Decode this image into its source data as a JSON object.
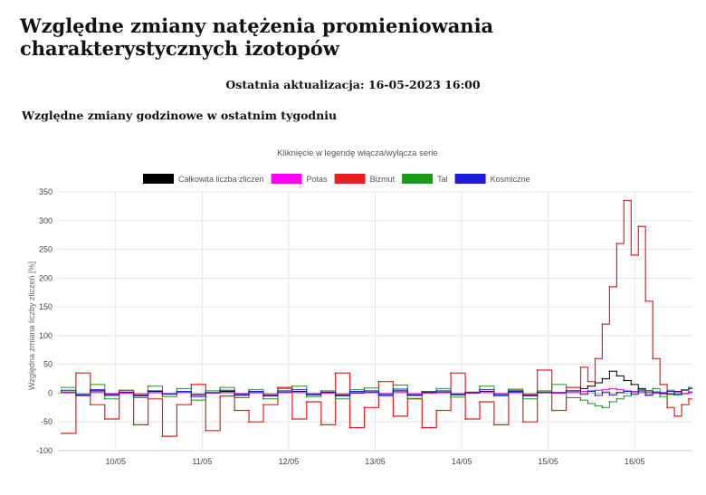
{
  "page": {
    "title": "Względne zmiany natężenia promieniowania charakterystycznych izotopów",
    "updated_label": "Ostatnia aktualizacja: 16-05-2023 16:00",
    "section_title": "Względne zmiany godzinowe w ostatnim tygodniu"
  },
  "chart_data": {
    "type": "line",
    "hint": "Kliknięcie w legendę włącza/wyłącza serie",
    "ylabel": "Względna zmiana liczby zliczeń [%]",
    "ylim": [
      -100,
      350
    ],
    "yticks": [
      -100,
      -50,
      0,
      50,
      100,
      150,
      200,
      250,
      300,
      350
    ],
    "xlim": [
      "09/05 08:00",
      "16/05 16:00"
    ],
    "xticks": [
      "10/05",
      "11/05",
      "12/05",
      "13/05",
      "14/05",
      "15/05",
      "16/05"
    ],
    "grid": true,
    "legend_position": "top",
    "x": [
      "09/05 09:00",
      "09/05 13:00",
      "09/05 17:00",
      "09/05 21:00",
      "10/05 01:00",
      "10/05 05:00",
      "10/05 09:00",
      "10/05 13:00",
      "10/05 17:00",
      "10/05 21:00",
      "11/05 01:00",
      "11/05 05:00",
      "11/05 09:00",
      "11/05 13:00",
      "11/05 17:00",
      "11/05 21:00",
      "12/05 01:00",
      "12/05 05:00",
      "12/05 09:00",
      "12/05 13:00",
      "12/05 17:00",
      "12/05 21:00",
      "13/05 01:00",
      "13/05 05:00",
      "13/05 09:00",
      "13/05 13:00",
      "13/05 17:00",
      "13/05 21:00",
      "14/05 01:00",
      "14/05 05:00",
      "14/05 09:00",
      "14/05 13:00",
      "14/05 17:00",
      "14/05 21:00",
      "15/05 01:00",
      "15/05 05:00",
      "15/05 09:00",
      "15/05 11:00",
      "15/05 13:00",
      "15/05 15:00",
      "15/05 17:00",
      "15/05 19:00",
      "15/05 21:00",
      "15/05 23:00",
      "16/05 01:00",
      "16/05 03:00",
      "16/05 05:00",
      "16/05 07:00",
      "16/05 09:00",
      "16/05 11:00",
      "16/05 13:00",
      "16/05 15:00"
    ],
    "series": [
      {
        "name": "Całkowita liczba zliczeń",
        "color": "#000000",
        "values": [
          2,
          -3,
          4,
          -2,
          1,
          -4,
          3,
          -1,
          2,
          -3,
          0,
          3,
          -2,
          1,
          -4,
          2,
          3,
          -2,
          1,
          -3,
          0,
          2,
          -1,
          4,
          -3,
          1,
          2,
          -2,
          0,
          3,
          -1,
          2,
          -3,
          1,
          0,
          4,
          8,
          12,
          18,
          25,
          38,
          30,
          22,
          15,
          8,
          4,
          2,
          0,
          -2,
          3,
          -1,
          2
        ]
      },
      {
        "name": "Potas",
        "color": "#ff00ff",
        "values": [
          1,
          -2,
          2,
          -1,
          0,
          -2,
          1,
          -1,
          2,
          -2,
          0,
          1,
          -1,
          1,
          -2,
          1,
          2,
          -1,
          0,
          -2,
          1,
          1,
          -1,
          2,
          -1,
          0,
          1,
          -1,
          0,
          2,
          -1,
          1,
          -2,
          1,
          0,
          2,
          3,
          4,
          5,
          6,
          8,
          6,
          4,
          3,
          2,
          1,
          0,
          1,
          -1,
          2,
          -1,
          1
        ]
      },
      {
        "name": "Bizmut",
        "color": "#e62020",
        "values": [
          -70,
          35,
          -20,
          -45,
          5,
          -55,
          -10,
          -75,
          -20,
          15,
          -65,
          -5,
          -30,
          -50,
          -20,
          10,
          -45,
          -15,
          -55,
          35,
          -60,
          -25,
          20,
          -40,
          -10,
          -60,
          -30,
          35,
          -45,
          -15,
          -55,
          5,
          -50,
          40,
          -30,
          10,
          45,
          20,
          60,
          120,
          185,
          260,
          335,
          240,
          290,
          160,
          60,
          15,
          -25,
          -40,
          -20,
          -10
        ]
      },
      {
        "name": "Tal",
        "color": "#1a9a1a",
        "values": [
          10,
          -5,
          15,
          -10,
          5,
          -8,
          12,
          -6,
          8,
          -12,
          4,
          10,
          -8,
          6,
          -10,
          8,
          12,
          -6,
          4,
          -10,
          6,
          9,
          -5,
          14,
          -9,
          3,
          8,
          -7,
          2,
          12,
          -5,
          7,
          -10,
          4,
          15,
          -8,
          -12,
          -18,
          -22,
          -25,
          -15,
          -10,
          -5,
          2,
          6,
          -4,
          8,
          -6,
          5,
          -3,
          6,
          10
        ]
      },
      {
        "name": "Kosmiczne",
        "color": "#1c1cd9",
        "values": [
          5,
          -3,
          6,
          -4,
          2,
          -5,
          4,
          -2,
          3,
          -6,
          1,
          5,
          -4,
          3,
          -5,
          4,
          6,
          -3,
          2,
          -5,
          3,
          4,
          -3,
          7,
          -4,
          2,
          4,
          -3,
          1,
          6,
          -3,
          3,
          -5,
          2,
          1,
          4,
          -2,
          3,
          -4,
          2,
          -3,
          1,
          3,
          -2,
          4,
          -3,
          2,
          -1,
          3,
          -2,
          5,
          8
        ]
      }
    ]
  }
}
